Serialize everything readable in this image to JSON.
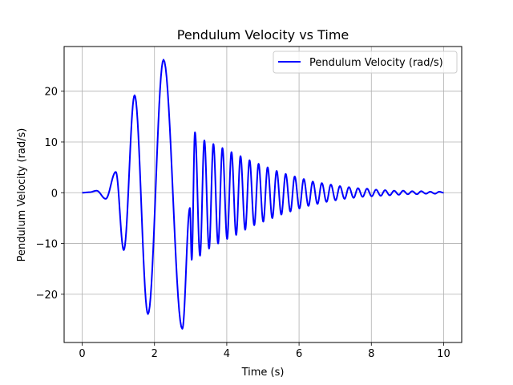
{
  "chart_data": {
    "type": "line",
    "title": "Pendulum Velocity vs Time",
    "xlabel": "Time (s)",
    "ylabel": "Pendulum Velocity (rad/s)",
    "xlim": [
      -0.5,
      10.5
    ],
    "ylim": [
      -29.5,
      28.8
    ],
    "xticks": [
      0,
      2,
      4,
      6,
      8,
      10
    ],
    "yticks": [
      -20,
      -10,
      0,
      10,
      20
    ],
    "xtick_labels": [
      "0",
      "2",
      "4",
      "6",
      "8",
      "10"
    ],
    "ytick_labels": [
      "−20",
      "−10",
      "0",
      "10",
      "20"
    ],
    "grid": true,
    "legend_position": "top-right",
    "series": [
      {
        "name": "Pendulum Velocity (rad/s)",
        "color": "#0000ff",
        "extrema": [
          [
            0.0,
            0.0
          ],
          [
            0.2,
            0.1
          ],
          [
            0.4,
            0.4
          ],
          [
            0.65,
            -1.2
          ],
          [
            0.93,
            4.1
          ],
          [
            1.15,
            -11.3
          ],
          [
            1.45,
            19.2
          ],
          [
            1.82,
            -23.9
          ],
          [
            2.25,
            26.2
          ],
          [
            2.77,
            -26.8
          ],
          [
            2.98,
            -3.0
          ],
          [
            3.03,
            -13.2
          ],
          [
            3.12,
            11.9
          ],
          [
            3.26,
            -12.4
          ],
          [
            3.38,
            10.3
          ],
          [
            3.51,
            -11.0
          ],
          [
            3.63,
            9.6
          ],
          [
            3.76,
            -10.0
          ],
          [
            3.88,
            8.8
          ],
          [
            4.01,
            -9.1
          ],
          [
            4.13,
            8.0
          ],
          [
            4.26,
            -8.3
          ],
          [
            4.38,
            7.2
          ],
          [
            4.51,
            -7.3
          ],
          [
            4.63,
            6.4
          ],
          [
            4.76,
            -6.4
          ],
          [
            4.88,
            5.7
          ],
          [
            5.01,
            -5.7
          ],
          [
            5.13,
            5.0
          ],
          [
            5.26,
            -5.0
          ],
          [
            5.38,
            4.3
          ],
          [
            5.51,
            -4.3
          ],
          [
            5.63,
            3.7
          ],
          [
            5.76,
            -3.7
          ],
          [
            5.88,
            3.2
          ],
          [
            6.01,
            -3.1
          ],
          [
            6.13,
            2.7
          ],
          [
            6.26,
            -2.6
          ],
          [
            6.38,
            2.2
          ],
          [
            6.51,
            -2.2
          ],
          [
            6.63,
            1.9
          ],
          [
            6.76,
            -1.8
          ],
          [
            6.88,
            1.6
          ],
          [
            7.01,
            -1.5
          ],
          [
            7.13,
            1.3
          ],
          [
            7.26,
            -1.2
          ],
          [
            7.38,
            1.1
          ],
          [
            7.51,
            -1.0
          ],
          [
            7.63,
            0.9
          ],
          [
            7.76,
            -0.8
          ],
          [
            7.88,
            0.8
          ],
          [
            8.01,
            -0.7
          ],
          [
            8.13,
            0.6
          ],
          [
            8.26,
            -0.6
          ],
          [
            8.38,
            0.5
          ],
          [
            8.51,
            -0.5
          ],
          [
            8.63,
            0.4
          ],
          [
            8.76,
            -0.4
          ],
          [
            8.88,
            0.4
          ],
          [
            9.01,
            -0.3
          ],
          [
            9.13,
            0.3
          ],
          [
            9.26,
            -0.3
          ],
          [
            9.38,
            0.3
          ],
          [
            9.51,
            -0.2
          ],
          [
            9.63,
            0.2
          ],
          [
            9.76,
            -0.2
          ],
          [
            9.88,
            0.2
          ],
          [
            10.0,
            0.0
          ]
        ]
      }
    ]
  }
}
